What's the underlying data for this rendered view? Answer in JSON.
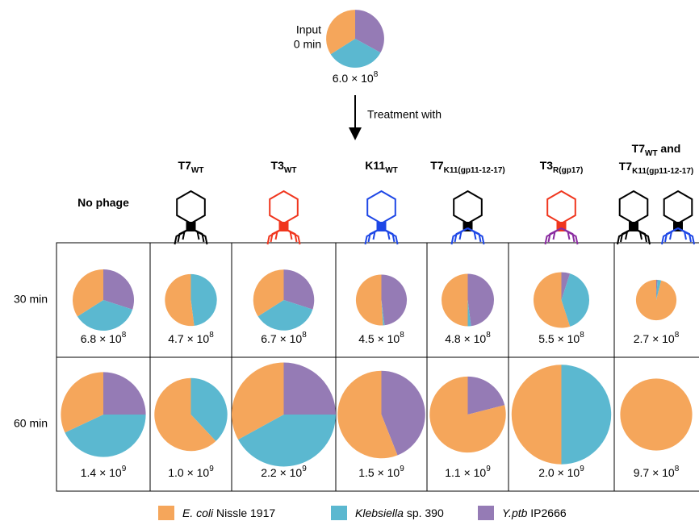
{
  "chart_data": {
    "type": "pie",
    "series": [
      {
        "name_italic": "E. coli",
        "name_rest": " Nissle 1917",
        "color": "#F5A65B"
      },
      {
        "name_italic": "Klebsiella",
        "name_rest": " sp. 390",
        "color": "#5BB8D0"
      },
      {
        "name_italic": "Y.ptb",
        "name_rest": " IP2666",
        "color": "#957BB5"
      }
    ],
    "input": {
      "label_lines": [
        "Input",
        "0 min"
      ],
      "values": [
        34,
        33,
        33
      ],
      "total": 600000000,
      "total_label": {
        "base": "6.0 × 10",
        "exp": "8"
      }
    },
    "treatment_label": "Treatment with",
    "headers": [
      {
        "lines": [
          [
            {
              "text": "No phage"
            }
          ]
        ],
        "icons": []
      },
      {
        "lines": [
          [
            {
              "text": "T7"
            },
            {
              "sub": "WT"
            }
          ]
        ],
        "icons": [
          [
            "#000000",
            "#000000"
          ]
        ]
      },
      {
        "lines": [
          [
            {
              "text": "T3"
            },
            {
              "sub": "WT"
            }
          ]
        ],
        "icons": [
          [
            "#F0361E",
            "#F0361E"
          ]
        ]
      },
      {
        "lines": [
          [
            {
              "text": "K11"
            },
            {
              "sub": "WT"
            }
          ]
        ],
        "icons": [
          [
            "#1E47E6",
            "#1E47E6"
          ]
        ]
      },
      {
        "lines": [
          [
            {
              "text": "T7"
            },
            {
              "sub": "K11(gp11-12-17)"
            }
          ]
        ],
        "icons": [
          [
            "#000000",
            "#1E47E6"
          ]
        ]
      },
      {
        "lines": [
          [
            {
              "text": "T3"
            },
            {
              "sub": "R(gp17)"
            }
          ]
        ],
        "icons": [
          [
            "#F0361E",
            "#8A2BA0"
          ]
        ]
      },
      {
        "lines": [
          [
            {
              "text": "T7"
            },
            {
              "sub": "WT"
            },
            {
              "text": " and"
            }
          ],
          [
            {
              "text": "T7"
            },
            {
              "sub": "K11(gp11-12-17)"
            }
          ]
        ],
        "icons": [
          [
            "#000000",
            "#000000"
          ],
          [
            "#000000",
            "#1E47E6"
          ]
        ]
      }
    ],
    "rows": [
      {
        "label": "30 min",
        "cells": [
          {
            "values": [
              34,
              36,
              30
            ],
            "total": 680000000,
            "total_label": {
              "base": "6.8 × 10",
              "exp": "8"
            }
          },
          {
            "values": [
              52,
              48,
              0
            ],
            "total": 470000000,
            "total_label": {
              "base": "4.7 × 10",
              "exp": "8"
            }
          },
          {
            "values": [
              34,
              36,
              30
            ],
            "total": 670000000,
            "total_label": {
              "base": "6.7 × 10",
              "exp": "8"
            }
          },
          {
            "values": [
              51,
              1,
              48
            ],
            "total": 450000000,
            "total_label": {
              "base": "4.5 × 10",
              "exp": "8"
            }
          },
          {
            "values": [
              50,
              2,
              48
            ],
            "total": 480000000,
            "total_label": {
              "base": "4.8 × 10",
              "exp": "8"
            }
          },
          {
            "values": [
              55,
              40,
              5
            ],
            "total": 550000000,
            "total_label": {
              "base": "5.5 × 10",
              "exp": "8"
            }
          },
          {
            "values": [
              96,
              3,
              1
            ],
            "total": 270000000,
            "total_label": {
              "base": "2.7 × 10",
              "exp": "8"
            }
          }
        ]
      },
      {
        "label": "60 min",
        "cells": [
          {
            "values": [
              32,
              43,
              25
            ],
            "total": 1400000000,
            "total_label": {
              "base": "1.4 × 10",
              "exp": "9"
            }
          },
          {
            "values": [
              62,
              38,
              0
            ],
            "total": 1000000000,
            "total_label": {
              "base": "1.0 × 10",
              "exp": "9"
            }
          },
          {
            "values": [
              33,
              42,
              25
            ],
            "total": 2200000000,
            "total_label": {
              "base": "2.2 × 10",
              "exp": "9"
            }
          },
          {
            "values": [
              56,
              0,
              44
            ],
            "total": 1500000000,
            "total_label": {
              "base": "1.5 × 10",
              "exp": "9"
            }
          },
          {
            "values": [
              79,
              0,
              21
            ],
            "total": 1100000000,
            "total_label": {
              "base": "1.1 × 10",
              "exp": "9"
            }
          },
          {
            "values": [
              50,
              50,
              0
            ],
            "total": 2000000000,
            "total_label": {
              "base": "2.0 × 10",
              "exp": "9"
            }
          },
          {
            "values": [
              100,
              0,
              0
            ],
            "total": 970000000,
            "total_label": {
              "base": "9.7 × 10",
              "exp": "8"
            }
          }
        ]
      }
    ]
  }
}
